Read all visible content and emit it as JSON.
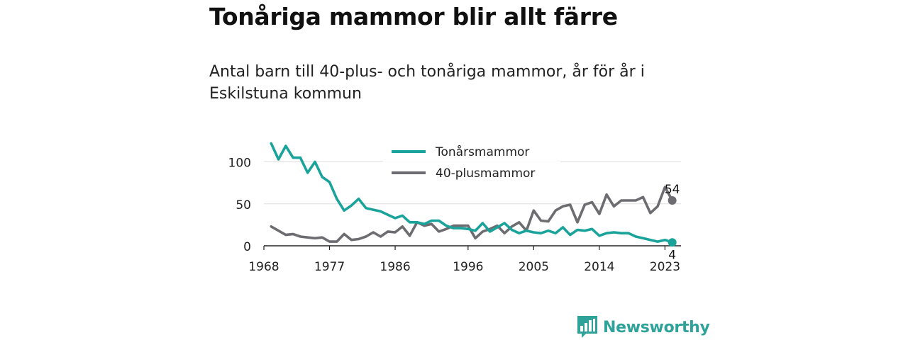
{
  "title": "Tonåriga mammor blir allt färre",
  "subtitle": "Antal barn till 40-plus- och tonåriga mammor, år för år i Eskilstuna kommun",
  "logo_text": "Newsworthy",
  "colors": {
    "teen": "#1aa39a",
    "forty": "#6d6c71",
    "grid": "#dddddd",
    "axis": "#222222"
  },
  "chart_data": {
    "type": "line",
    "title": "Tonåriga mammor blir allt färre",
    "x": [
      1969,
      1970,
      1971,
      1972,
      1973,
      1974,
      1975,
      1976,
      1977,
      1978,
      1979,
      1980,
      1981,
      1982,
      1983,
      1984,
      1985,
      1986,
      1987,
      1988,
      1989,
      1990,
      1991,
      1992,
      1993,
      1994,
      1995,
      1996,
      1997,
      1998,
      1999,
      2000,
      2001,
      2002,
      2003,
      2004,
      2005,
      2006,
      2007,
      2008,
      2009,
      2010,
      2011,
      2012,
      2013,
      2014,
      2015,
      2016,
      2017,
      2018,
      2019,
      2020,
      2021,
      2022,
      2023,
      2024
    ],
    "series": [
      {
        "name": "Tonårsmammor",
        "color": "#1aa39a",
        "values": [
          122,
          103,
          119,
          105,
          105,
          87,
          100,
          82,
          76,
          56,
          42,
          48,
          56,
          45,
          43,
          41,
          37,
          33,
          36,
          28,
          28,
          26,
          30,
          30,
          24,
          21,
          21,
          20,
          18,
          27,
          17,
          22,
          27,
          19,
          15,
          18,
          16,
          15,
          18,
          15,
          22,
          13,
          19,
          18,
          20,
          12,
          15,
          16,
          15,
          15,
          11,
          9,
          7,
          5,
          7,
          4
        ]
      },
      {
        "name": "40-plusmammor",
        "color": "#6d6c71",
        "values": [
          23,
          18,
          13,
          14,
          11,
          10,
          9,
          10,
          5,
          5,
          14,
          7,
          8,
          11,
          16,
          11,
          17,
          16,
          23,
          12,
          28,
          24,
          26,
          17,
          20,
          24,
          24,
          24,
          9,
          17,
          20,
          24,
          15,
          23,
          28,
          18,
          42,
          30,
          29,
          42,
          47,
          49,
          28,
          49,
          52,
          38,
          61,
          47,
          54,
          54,
          54,
          58,
          39,
          47,
          70,
          54
        ]
      }
    ],
    "x_ticks": [
      "1968",
      "1977",
      "1986",
      "1996",
      "2005",
      "2014",
      "2023"
    ],
    "y_ticks": [
      "0",
      "50",
      "100"
    ],
    "ylim": [
      0,
      130
    ],
    "end_labels": [
      "54",
      "4"
    ],
    "legend_position": "top-center",
    "grid": "horizontal"
  }
}
